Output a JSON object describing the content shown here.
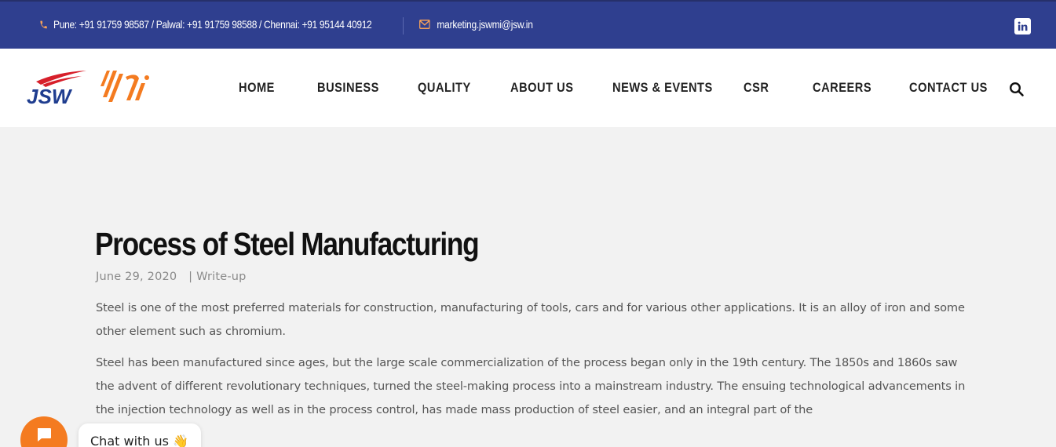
{
  "topbar": {
    "phone_text": "Pune: +91 91759 98587 / Palwal: +91 91759 98588 / Chennai: +91 95144 40912",
    "email": "marketing.jswmi@jsw.in",
    "icons": {
      "phone": "phone-icon",
      "mail": "mail-icon",
      "social": "linkedin-icon"
    },
    "colors": {
      "background": "#2f3f8f",
      "icon_accent": "#f5a05a"
    }
  },
  "header": {
    "logo_alt": "JSW MI",
    "nav": [
      {
        "label": "HOME"
      },
      {
        "label": "BUSINESS"
      },
      {
        "label": "QUALITY"
      },
      {
        "label": "ABOUT US"
      },
      {
        "label": "NEWS & EVENTS"
      },
      {
        "label": "CSR"
      },
      {
        "label": "CAREERS"
      },
      {
        "label": "CONTACT US"
      }
    ],
    "search_icon": "search-icon"
  },
  "article": {
    "title": "Process of Steel Manufacturing",
    "date": "June 29, 2020",
    "category": "| Write-up",
    "paragraphs": [
      "Steel is one of the most preferred materials for construction, manufacturing of tools, cars and for various other applications. It is an alloy of iron and some other element such as chromium.",
      "Steel has been manufactured since ages, but the large scale commercialization of the process began only in the 19th century. The 1850s and 1860s saw the advent of different revolutionary techniques, turned the steel-making process into a mainstream industry. The ensuing technological advancements in the injection technology as well as in the process control, has made mass production of steel easier, and an integral part of the"
    ]
  },
  "chat": {
    "label": "Chat with us 👋",
    "icon": "chat-icon",
    "color": "#f47b20"
  }
}
